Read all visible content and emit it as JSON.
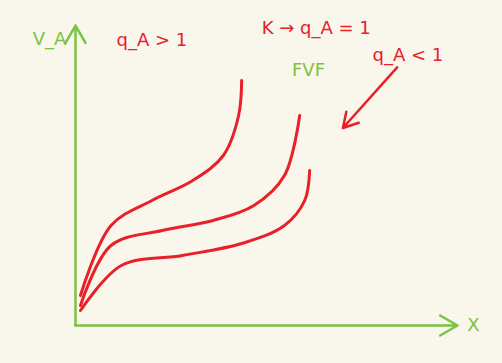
{
  "chart_data": {
    "type": "line",
    "x_label": "X",
    "y_label": "V_A",
    "xlim": [
      0,
      10
    ],
    "ylim": [
      0,
      12
    ],
    "tick_labels": false,
    "grid": false,
    "axis_color": "#7dc242",
    "series": [
      {
        "name": "q_A > 1",
        "color": "#e8202a",
        "x": [
          0.13,
          0.93,
          2.0,
          3.07,
          3.87,
          4.27,
          4.35
        ],
        "values": [
          1.2,
          4.0,
          5.0,
          5.8,
          6.8,
          8.4,
          9.8
        ],
        "label_at": [
          2.0,
          11.4
        ]
      },
      {
        "name": "K → q_A = 1",
        "color": "#e8202a",
        "x": [
          0.13,
          0.93,
          2.27,
          3.6,
          4.67,
          5.47,
          5.87
        ],
        "values": [
          0.8,
          3.2,
          3.8,
          4.2,
          4.8,
          6.0,
          8.4
        ],
        "label_at": [
          6.3,
          11.9
        ]
      },
      {
        "name": "q_A < 1",
        "color": "#e8202a",
        "x": [
          0.13,
          1.2,
          2.8,
          4.4,
          5.47,
          6.0,
          6.13
        ],
        "values": [
          0.6,
          2.4,
          2.8,
          3.3,
          4.0,
          5.0,
          6.2
        ],
        "label_at": [
          8.7,
          10.8
        ],
        "arrow_to": [
          7.0,
          7.9
        ]
      }
    ],
    "annotations": [
      {
        "text": "FVF",
        "x": 6.1,
        "y": 10.2,
        "color": "#7dc242"
      }
    ]
  }
}
